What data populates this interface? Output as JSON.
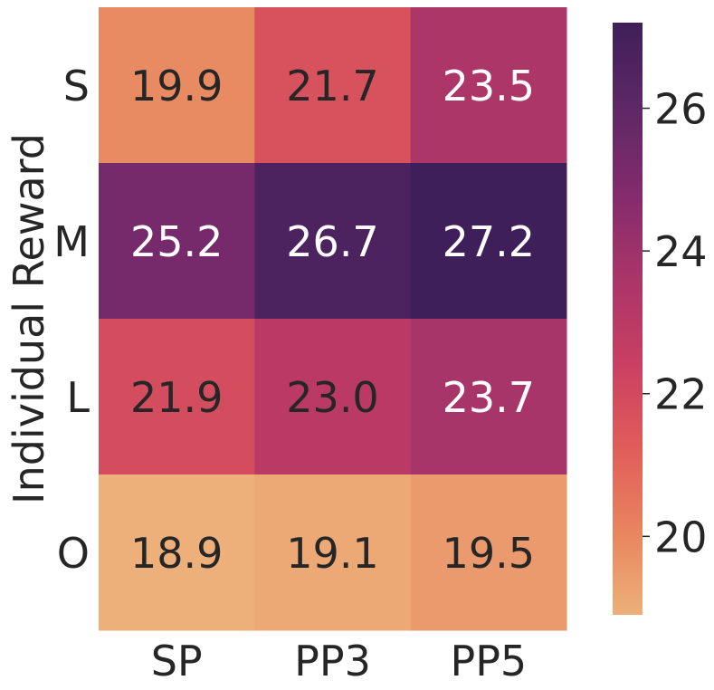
{
  "chart_data": {
    "type": "heatmap",
    "title": "",
    "xlabel": "",
    "ylabel": "Individual Reward",
    "x_categories": [
      "SP",
      "PP3",
      "PP5"
    ],
    "y_categories": [
      "S",
      "M",
      "L",
      "O"
    ],
    "values": [
      [
        19.9,
        21.7,
        23.5
      ],
      [
        25.2,
        26.7,
        27.2
      ],
      [
        21.9,
        23.0,
        23.7
      ],
      [
        18.9,
        19.1,
        19.5
      ]
    ],
    "value_labels": [
      [
        "19.9",
        "21.7",
        "23.5"
      ],
      [
        "25.2",
        "26.7",
        "27.2"
      ],
      [
        "21.9",
        "23.0",
        "23.7"
      ],
      [
        "18.9",
        "19.1",
        "19.5"
      ]
    ],
    "colorbar": {
      "range": [
        18.9,
        27.2
      ],
      "ticks": [
        20,
        22,
        24,
        26
      ],
      "tick_labels": [
        "20",
        "22",
        "24",
        "26"
      ]
    },
    "colormap": "flare",
    "colormap_stops": [
      "#edb07a",
      "#e8845e",
      "#e05c5a",
      "#c83f62",
      "#a93569",
      "#822b6d",
      "#5e2866",
      "#3f1f59"
    ],
    "label_dark_color": "#262626",
    "label_light_color": "#ffffff",
    "axis_text_color": "#262626"
  }
}
